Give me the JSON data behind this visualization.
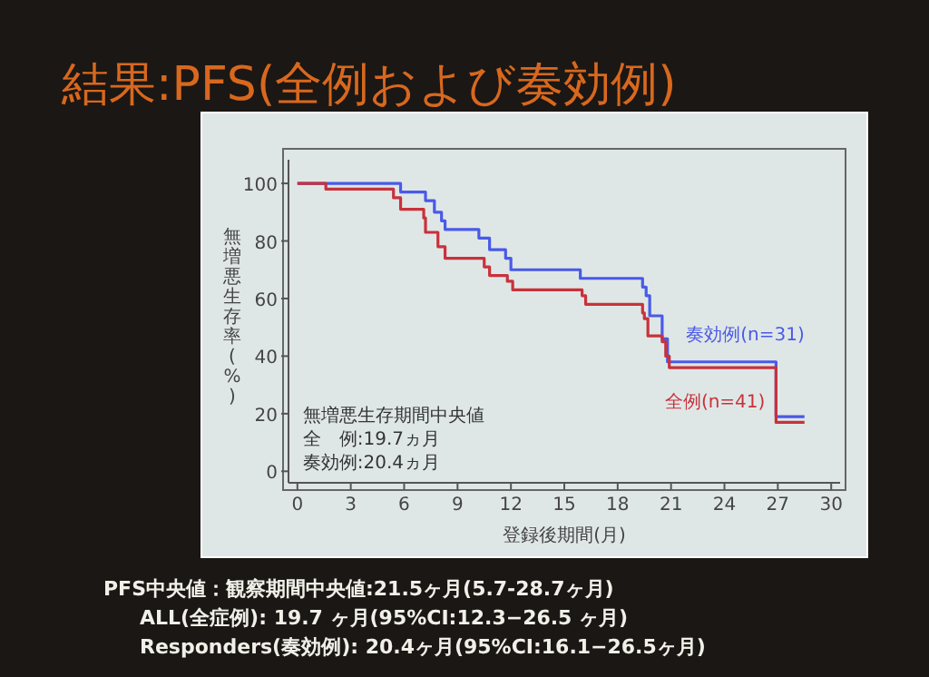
{
  "chart_data": {
    "type": "step",
    "title": "結果:PFS(全例および奏効例)",
    "xlabel": "登録後期間(月)",
    "ylabel": "無増悪生存率(%)",
    "xlim": [
      -0.5,
      30.5
    ],
    "ylim": [
      -4,
      112
    ],
    "xticks": [
      0,
      3,
      6,
      9,
      12,
      15,
      18,
      21,
      24,
      27,
      30
    ],
    "yticks": [
      0,
      20,
      40,
      60,
      80,
      100
    ],
    "series": [
      {
        "name": "奏効例(n=31)",
        "color": "#4a5ae8",
        "x": [
          0,
          5.8,
          7.2,
          7.7,
          8.1,
          8.3,
          10.2,
          10.8,
          11.7,
          12.0,
          15.9,
          19.4,
          19.6,
          19.8,
          20.5,
          20.8,
          26.9,
          28.5
        ],
        "values": [
          100,
          97,
          94,
          90,
          87,
          84,
          81,
          77,
          74,
          70,
          67,
          64,
          61,
          54,
          46,
          38,
          19,
          19
        ]
      },
      {
        "name": "全例(n=41)",
        "color": "#c8323c",
        "x": [
          0,
          1.6,
          5.4,
          5.8,
          7.1,
          7.2,
          7.9,
          8.3,
          10.5,
          10.8,
          11.8,
          12.1,
          16.0,
          16.2,
          19.4,
          19.5,
          19.7,
          20.5,
          20.7,
          20.9,
          26.9,
          28.5
        ],
        "values": [
          100,
          98,
          95,
          91,
          88,
          83,
          78,
          74,
          71,
          68,
          66,
          63,
          61,
          58,
          55,
          53,
          47,
          45,
          40,
          36,
          17,
          17
        ]
      }
    ],
    "annotations": [
      "無増悪生存期間中央値",
      "全　例:19.7ヵ月",
      "奏効例:20.4ヵ月",
      "PFS中央値：観察期間中央値:21.5ヶ月(5.7-28.7ヶ月)",
      "ALL(全症例): 19.7 ヶ月(95%CI:12.3−26.5 ヶ月)",
      "Responders(奏効例): 20.4ヶ月(95%CI:16.1−26.5ヶ月)"
    ]
  }
}
